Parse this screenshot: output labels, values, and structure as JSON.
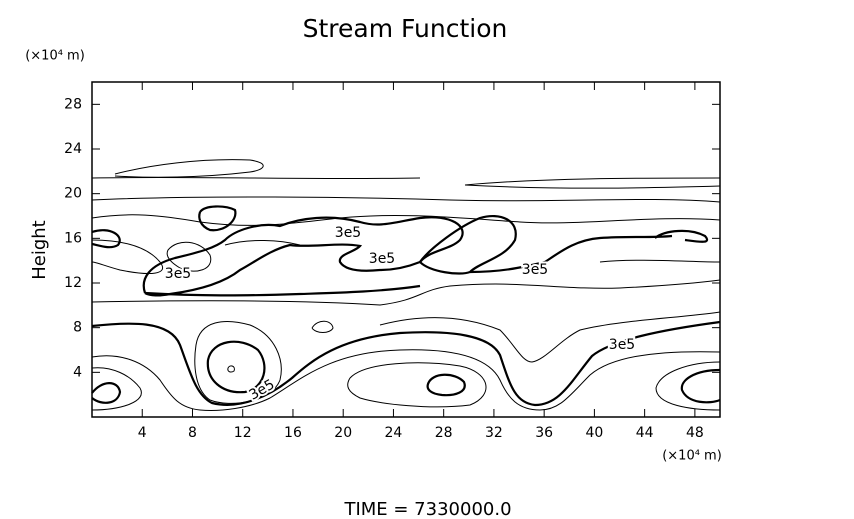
{
  "chart_data": {
    "type": "contour",
    "title": "Stream Function",
    "ylabel": "Height",
    "yunit": "(×10⁴ m)",
    "xunit": "(×10⁴ m)",
    "xlim": [
      0,
      50
    ],
    "ylim": [
      0,
      30
    ],
    "xticks": [
      4,
      8,
      12,
      16,
      20,
      24,
      28,
      32,
      36,
      40,
      44,
      48
    ],
    "yticks": [
      4,
      8,
      12,
      16,
      20,
      24,
      28
    ],
    "levels": [
      {
        "value": 300000,
        "label": "3e5"
      }
    ],
    "footer": "TIME = 7330000.0"
  }
}
